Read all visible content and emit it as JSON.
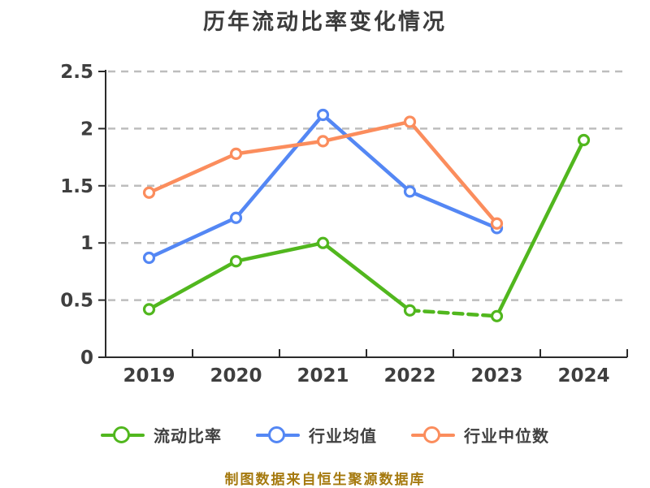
{
  "title": "历年流动比率变化情况",
  "footer": "制图数据来自恒生聚源数据库",
  "colors": {
    "title": "#3c3c3c",
    "axis": "#2b2b2b",
    "tick_label": "#3f3f3f",
    "grid": "#bdbdbd",
    "legend_text": "#404040",
    "footer": "#a5790e",
    "marker_fill": "#ffffff",
    "background": "#ffffff"
  },
  "chart_data": {
    "type": "line",
    "title": "历年流动比率变化情况",
    "categories": [
      "2019",
      "2020",
      "2021",
      "2022",
      "2023",
      "2024"
    ],
    "y_ticks": [
      "0",
      "0.5",
      "1",
      "1.5",
      "2",
      "2.5"
    ],
    "ylim": [
      0,
      2.5
    ],
    "grid": "horizontal-dashed",
    "legend_position": "bottom",
    "marker": "open-circle",
    "draw_order": [
      1,
      2,
      0
    ],
    "series": [
      {
        "name": "流动比率",
        "color": "#51b71e",
        "values": [
          0.42,
          0.84,
          1.0,
          0.41,
          0.36,
          1.9
        ],
        "dashed_segments": [
          [
            3,
            4
          ]
        ]
      },
      {
        "name": "行业均值",
        "color": "#5487f4",
        "values": [
          0.87,
          1.22,
          2.12,
          1.45,
          1.13,
          null
        ]
      },
      {
        "name": "行业中位数",
        "color": "#fb8d5d",
        "values": [
          1.44,
          1.78,
          1.89,
          2.06,
          1.17,
          null
        ]
      }
    ]
  }
}
